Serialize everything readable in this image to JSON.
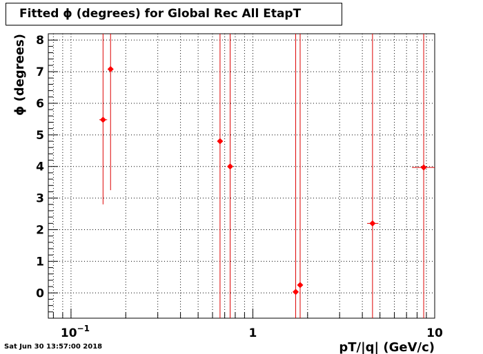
{
  "title": "Fitted ϕ (degrees) for Global Rec All EtapT",
  "timestamp": "Sat Jun 30 13:57:00 2018",
  "chart_data": {
    "type": "scatter",
    "x_scale": "log",
    "xlabel": "pT/|q| (GeV/c)",
    "ylabel": "ϕ (degrees)",
    "xlim": [
      0.075,
      10
    ],
    "ylim": [
      -0.8,
      8.2
    ],
    "grid": true,
    "x_tick_labels": [
      {
        "value": 0.1,
        "base": "10",
        "exp": "−1"
      },
      {
        "value": 1,
        "base": "1",
        "exp": ""
      },
      {
        "value": 10,
        "base": "10",
        "exp": ""
      }
    ],
    "y_ticks": [
      0,
      1,
      2,
      3,
      4,
      5,
      6,
      7,
      8
    ],
    "points": [
      {
        "x": 0.15,
        "y": 5.48,
        "xlo": 0.143,
        "xhi": 0.158,
        "ylo": 2.8,
        "yhi": 8.2
      },
      {
        "x": 0.165,
        "y": 7.08,
        "xlo": 0.16,
        "xhi": 0.17,
        "ylo": 3.25,
        "yhi": 8.2
      },
      {
        "x": 0.66,
        "y": 4.8,
        "xlo": 0.655,
        "xhi": 0.665,
        "ylo": -0.8,
        "yhi": 8.2
      },
      {
        "x": 0.75,
        "y": 4.0,
        "xlo": 0.745,
        "xhi": 0.755,
        "ylo": -0.8,
        "yhi": 8.2
      },
      {
        "x": 1.72,
        "y": 0.03,
        "xlo": 1.715,
        "xhi": 1.725,
        "ylo": -0.8,
        "yhi": 8.2
      },
      {
        "x": 1.82,
        "y": 0.25,
        "xlo": 1.815,
        "xhi": 1.825,
        "ylo": -0.8,
        "yhi": 8.2
      },
      {
        "x": 4.55,
        "y": 2.2,
        "xlo": 4.25,
        "xhi": 4.9,
        "ylo": -0.8,
        "yhi": 8.2
      },
      {
        "x": 8.7,
        "y": 3.97,
        "xlo": 7.5,
        "xhi": 10.0,
        "ylo": -0.8,
        "yhi": 8.2
      }
    ],
    "colors": {
      "marker": "#ff0000",
      "error": "#dd0000",
      "axis": "#000000",
      "grid": "#000000"
    }
  }
}
